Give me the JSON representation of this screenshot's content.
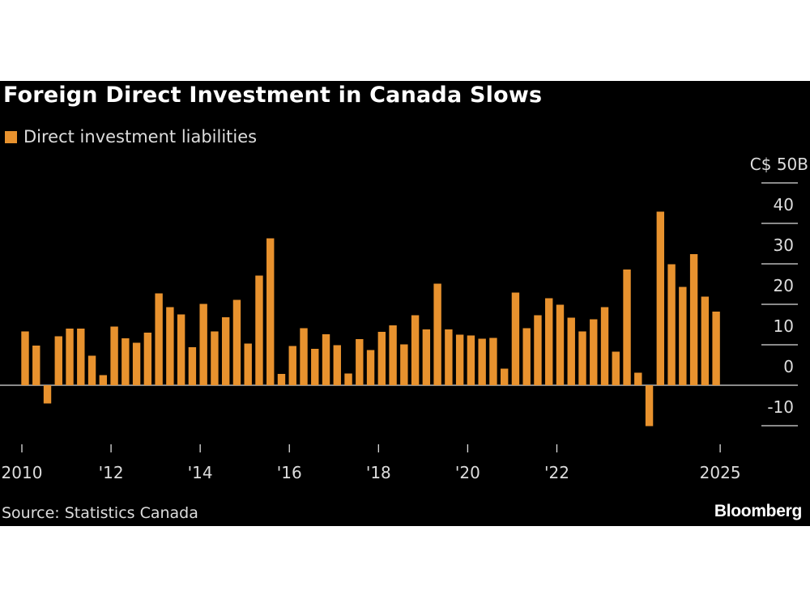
{
  "title": "Foreign Direct Investment in Canada Slows",
  "source": "Source: Statistics Canada",
  "logo": "Bloomberg",
  "colors": {
    "bar": "#e8922e",
    "background": "#000000",
    "text": "#dddddd"
  },
  "chart_data": {
    "type": "bar",
    "title": "Foreign Direct Investment in Canada Slows",
    "legend": [
      {
        "name": "Direct investment liabilities",
        "color": "#e8922e"
      }
    ],
    "legend_position": "top-left",
    "y_unit_label": "C$ 50B",
    "ylim": [
      -10,
      50
    ],
    "y_ticks": [
      {
        "value": 50,
        "label": "C$ 50B"
      },
      {
        "value": 40,
        "label": "40"
      },
      {
        "value": 30,
        "label": "30"
      },
      {
        "value": 20,
        "label": "20"
      },
      {
        "value": 10,
        "label": "10"
      },
      {
        "value": 0,
        "label": "0"
      },
      {
        "value": -10,
        "label": "-10"
      }
    ],
    "y_axis_side": "right",
    "grid": false,
    "x_ticks": [
      {
        "q": "2010 Q1",
        "label": "2010"
      },
      {
        "q": "2012 Q1",
        "label": "'12"
      },
      {
        "q": "2014 Q1",
        "label": "'14"
      },
      {
        "q": "2016 Q1",
        "label": "'16"
      },
      {
        "q": "2018 Q1",
        "label": "'18"
      },
      {
        "q": "2020 Q1",
        "label": "'20"
      },
      {
        "q": "2022 Q1",
        "label": "'22"
      },
      {
        "q": "2025 Q3",
        "label": "2025"
      }
    ],
    "series": [
      {
        "name": "Direct investment liabilities",
        "x": [
          "2010 Q1",
          "2010 Q2",
          "2010 Q3",
          "2010 Q4",
          "2011 Q1",
          "2011 Q2",
          "2011 Q3",
          "2011 Q4",
          "2012 Q1",
          "2012 Q2",
          "2012 Q3",
          "2012 Q4",
          "2013 Q1",
          "2013 Q2",
          "2013 Q3",
          "2013 Q4",
          "2014 Q1",
          "2014 Q2",
          "2014 Q3",
          "2014 Q4",
          "2015 Q1",
          "2015 Q2",
          "2015 Q3",
          "2015 Q4",
          "2016 Q1",
          "2016 Q2",
          "2016 Q3",
          "2016 Q4",
          "2017 Q1",
          "2017 Q2",
          "2017 Q3",
          "2017 Q4",
          "2018 Q1",
          "2018 Q2",
          "2018 Q3",
          "2018 Q4",
          "2019 Q1",
          "2019 Q2",
          "2019 Q3",
          "2019 Q4",
          "2020 Q1",
          "2020 Q2",
          "2020 Q3",
          "2020 Q4",
          "2021 Q1",
          "2021 Q2",
          "2021 Q3",
          "2021 Q4",
          "2022 Q1",
          "2022 Q2",
          "2022 Q3",
          "2022 Q4",
          "2023 Q1",
          "2023 Q2",
          "2023 Q3",
          "2023 Q4",
          "2024 Q1",
          "2024 Q2",
          "2024 Q3",
          "2024 Q4",
          "2025 Q1",
          "2025 Q2",
          "2025 Q3"
        ],
        "values": [
          13.3,
          9.8,
          -4.5,
          12.1,
          14.0,
          14.0,
          7.3,
          2.5,
          14.5,
          11.6,
          10.5,
          13.0,
          22.7,
          19.3,
          17.5,
          9.4,
          20.1,
          13.3,
          16.8,
          21.1,
          10.3,
          27.1,
          36.3,
          2.8,
          9.7,
          14.1,
          9.0,
          12.6,
          9.9,
          2.9,
          11.4,
          8.7,
          13.2,
          14.8,
          10.1,
          17.3,
          13.8,
          25.1,
          13.8,
          12.5,
          12.3,
          11.5,
          11.7,
          4.1,
          22.9,
          14.1,
          17.3,
          21.5,
          19.9,
          16.7,
          13.3,
          16.3,
          19.3,
          8.3,
          28.6,
          3.1,
          -10.1,
          42.9,
          29.9,
          24.3,
          32.4,
          21.9,
          18.2
        ]
      }
    ]
  }
}
